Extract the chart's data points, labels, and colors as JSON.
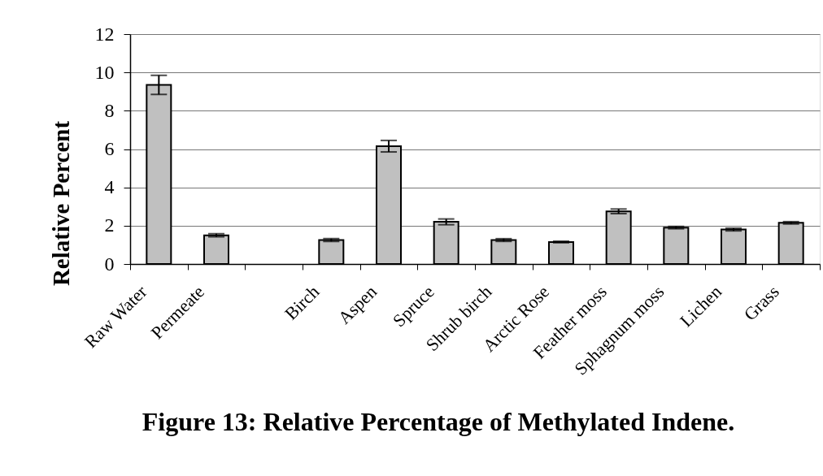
{
  "chart_data": {
    "type": "bar",
    "title": "Figure 13: Relative Percentage of Methylated Indene.",
    "ylabel": "Relative Percent",
    "categories": [
      "Raw Water",
      "Permeate",
      null,
      "Birch",
      "Aspen",
      "Spruce",
      "Shrub birch",
      "Arctic Rose",
      "Feather moss",
      "Sphagnum moss",
      "Lichen",
      "Grass"
    ],
    "values": [
      9.35,
      1.5,
      null,
      1.25,
      6.15,
      2.2,
      1.25,
      1.15,
      2.75,
      1.9,
      1.8,
      2.15
    ],
    "errors": [
      0.5,
      0.08,
      null,
      0.07,
      0.3,
      0.15,
      0.07,
      0.04,
      0.12,
      0.06,
      0.07,
      0.06
    ],
    "color": "#c0c0c0",
    "ylim": [
      0,
      12
    ],
    "yticks": [
      0,
      2,
      4,
      6,
      8,
      10,
      12
    ],
    "grid": "y"
  }
}
